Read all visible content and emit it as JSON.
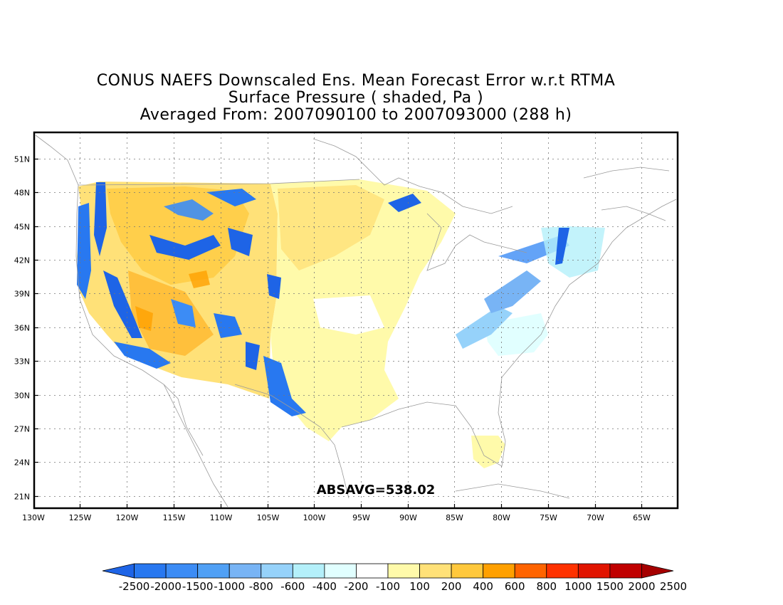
{
  "title": {
    "line1": "CONUS NAEFS Downscaled Ens. Mean Forecast Error w.r.t RTMA",
    "line2": "Surface Pressure ( shaded, Pa )",
    "line3": "Averaged From: 2007090100 to 2007093000 (288 h)"
  },
  "annotation": "ABSAVG=538.02",
  "lat_labels": [
    "51N",
    "48N",
    "45N",
    "42N",
    "39N",
    "36N",
    "33N",
    "30N",
    "27N",
    "24N",
    "21N"
  ],
  "lon_labels": [
    "130W",
    "125W",
    "120W",
    "115W",
    "110W",
    "105W",
    "100W",
    "95W",
    "90W",
    "85W",
    "80W",
    "75W",
    "70W",
    "65W"
  ],
  "colorbar": {
    "colors": [
      "#1e64e6",
      "#2878f0",
      "#3c8cf5",
      "#50a0f5",
      "#78b4f5",
      "#96d2fa",
      "#b4f0fa",
      "#e1ffff",
      "#ffffff",
      "#fffaaa",
      "#ffe178",
      "#ffc83c",
      "#ffa000",
      "#ff6400",
      "#ff3200",
      "#e11400",
      "#c00000",
      "#a50000"
    ],
    "labels": [
      "-2500",
      "-2000",
      "-1500",
      "-1000",
      "-800",
      "-600",
      "-400",
      "-200",
      "-100",
      "100",
      "200",
      "400",
      "600",
      "800",
      "1000",
      "1500",
      "2000",
      "2500"
    ]
  },
  "chart_data": {
    "type": "heatmap",
    "variable": "Surface Pressure ( shaded, Pa )",
    "xlim": [
      -130,
      -65
    ],
    "ylim": [
      20,
      53
    ],
    "absavg": 538.02
  }
}
